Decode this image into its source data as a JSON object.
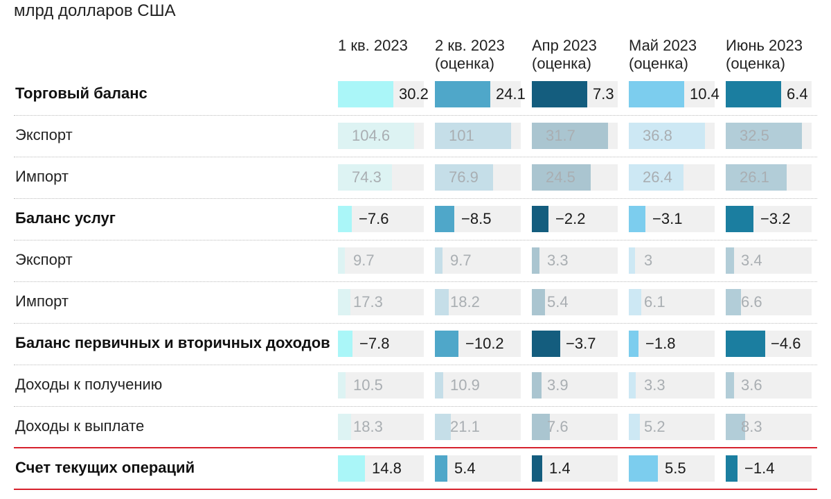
{
  "subtitle": "млрд долларов США",
  "columns": [
    {
      "line1": "1 кв. 2023",
      "line2": ""
    },
    {
      "line1": "2 кв. 2023",
      "line2": "(оценка)"
    },
    {
      "line1": "Апр 2023",
      "line2": "(оценка)"
    },
    {
      "line1": "Май 2023",
      "line2": "(оценка)"
    },
    {
      "line1": "Июнь 2023",
      "line2": "(оценка)"
    }
  ],
  "colors": {
    "main": [
      "#aaf6f8",
      "#4fa7c9",
      "#145d7e",
      "#7ccdee",
      "#1b7ea0"
    ],
    "sub": [
      "#ddf3f3",
      "#c5dee8",
      "#aac5d0",
      "#cde8f4",
      "#b2cdd8"
    ],
    "total_line": "#d6212c"
  },
  "chart_data": {
    "type": "table",
    "title": "",
    "unit": "млрд долларов США",
    "columns": [
      "1 кв. 2023",
      "2 кв. 2023 (оценка)",
      "Апр 2023 (оценка)",
      "Май 2023 (оценка)",
      "Июнь 2023 (оценка)"
    ],
    "rows": [
      {
        "label": "Торговый баланс",
        "kind": "main",
        "values": [
          "30.2",
          "24.1",
          "7.3",
          "10.4",
          "6.4"
        ]
      },
      {
        "label": "Экспорт",
        "kind": "sub",
        "values": [
          "104.6",
          "101",
          "31.7",
          "36.8",
          "32.5"
        ]
      },
      {
        "label": "Импорт",
        "kind": "sub",
        "values": [
          "74.3",
          "76.9",
          "24.5",
          "26.4",
          "26.1"
        ]
      },
      {
        "label": "Баланс услуг",
        "kind": "main",
        "values": [
          "−7.6",
          "−8.5",
          "−2.2",
          "−3.1",
          "−3.2"
        ]
      },
      {
        "label": "Экспорт",
        "kind": "sub",
        "values": [
          "9.7",
          "9.7",
          "3.3",
          "3",
          "3.4"
        ]
      },
      {
        "label": "Импорт",
        "kind": "sub",
        "values": [
          "17.3",
          "18.2",
          "5.4",
          "6.1",
          "6.6"
        ]
      },
      {
        "label": "Баланс первичных и вторичных доходов",
        "kind": "main",
        "values": [
          "−7.8",
          "−10.2",
          "−3.7",
          "−1.8",
          "−4.6"
        ]
      },
      {
        "label": "Доходы к получению",
        "kind": "sub",
        "values": [
          "10.5",
          "10.9",
          "3.9",
          "3.3",
          "3.6"
        ]
      },
      {
        "label": "Доходы к выплате",
        "kind": "sub",
        "values": [
          "18.3",
          "21.1",
          "7.6",
          "5.2",
          "8.3"
        ]
      },
      {
        "label": "Счет текущих операций",
        "kind": "total",
        "values": [
          "14.8",
          "5.4",
          "1.4",
          "5.5",
          "−1.4"
        ]
      }
    ]
  }
}
